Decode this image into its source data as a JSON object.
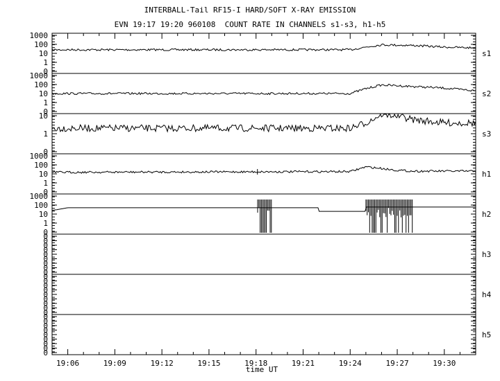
{
  "title_line1": "INTERBALL-Tail RF15-I HARD/SOFT X-RAY EMISSION",
  "title_line2": "EVN 19:17 19:20 960108  COUNT RATE IN CHANNELS s1-s3, h1-h5",
  "chart_data": {
    "type": "line",
    "xlabel": "time UT",
    "x_ticks": [
      "19:06",
      "19:09",
      "19:12",
      "19:15",
      "19:18",
      "19:21",
      "19:24",
      "19:27",
      "19:30"
    ],
    "x_range": [
      "19:05",
      "19:32"
    ],
    "y_scale": "log",
    "grid": false,
    "panels": [
      {
        "name": "s1",
        "y_ticks": [
          "1000",
          "100",
          "10",
          "1",
          "0"
        ],
        "series": [
          {
            "time": "19:05",
            "value": 25
          },
          {
            "time": "19:24",
            "value": 25
          },
          {
            "time": "19:25",
            "value": 50
          },
          {
            "time": "19:26",
            "value": 90
          },
          {
            "time": "19:28",
            "value": 75
          },
          {
            "time": "19:30",
            "value": 50
          },
          {
            "time": "19:32",
            "value": 40
          }
        ]
      },
      {
        "name": "s2",
        "y_ticks": [
          "1000",
          "100",
          "10",
          "1",
          "0"
        ],
        "series": [
          {
            "time": "19:05",
            "value": 10
          },
          {
            "time": "19:24",
            "value": 10
          },
          {
            "time": "19:25",
            "value": 35
          },
          {
            "time": "19:26",
            "value": 90
          },
          {
            "time": "19:28",
            "value": 60
          },
          {
            "time": "19:30",
            "value": 40
          },
          {
            "time": "19:32",
            "value": 20
          }
        ]
      },
      {
        "name": "s3",
        "y_ticks": [
          "10",
          "1",
          "0"
        ],
        "series": [
          {
            "time": "19:05",
            "value": 2
          },
          {
            "time": "19:24",
            "value": 2
          },
          {
            "time": "19:25",
            "value": 4
          },
          {
            "time": "19:26",
            "value": 12
          },
          {
            "time": "19:27",
            "value": 10
          },
          {
            "time": "19:28",
            "value": 6
          },
          {
            "time": "19:30",
            "value": 4
          },
          {
            "time": "19:32",
            "value": 4
          }
        ]
      },
      {
        "name": "h1",
        "y_ticks": [
          "1000",
          "100",
          "10",
          "1",
          "0"
        ],
        "series": [
          {
            "time": "19:05",
            "value": 15
          },
          {
            "time": "19:24",
            "value": 18
          },
          {
            "time": "19:25",
            "value": 60
          },
          {
            "time": "19:26",
            "value": 40
          },
          {
            "time": "19:27",
            "value": 25
          },
          {
            "time": "19:28",
            "value": 20
          },
          {
            "time": "19:32",
            "value": 20
          }
        ]
      },
      {
        "name": "h2",
        "y_ticks": [
          "1000",
          "100",
          "10",
          "1",
          "0"
        ],
        "series": [
          {
            "time": "19:05",
            "value": 25
          },
          {
            "time": "19:06",
            "value": 50
          },
          {
            "time": "19:22",
            "value": 50
          },
          {
            "time": "19:22",
            "value": 20
          },
          {
            "time": "19:25",
            "value": 20
          },
          {
            "time": "19:25",
            "value": 60
          },
          {
            "time": "19:32",
            "value": 60
          }
        ]
      },
      {
        "name": "h3",
        "y_ticks": [
          "0",
          "0",
          "0",
          "0",
          "0",
          "0",
          "0",
          "0",
          "0"
        ],
        "series": []
      },
      {
        "name": "h4",
        "y_ticks": [
          "0",
          "0",
          "0",
          "0",
          "0",
          "0",
          "0",
          "0",
          "0"
        ],
        "series": []
      },
      {
        "name": "h5",
        "y_ticks": [
          "0",
          "0",
          "0",
          "0",
          "0",
          "0",
          "0",
          "0",
          "0"
        ],
        "series": []
      }
    ]
  }
}
